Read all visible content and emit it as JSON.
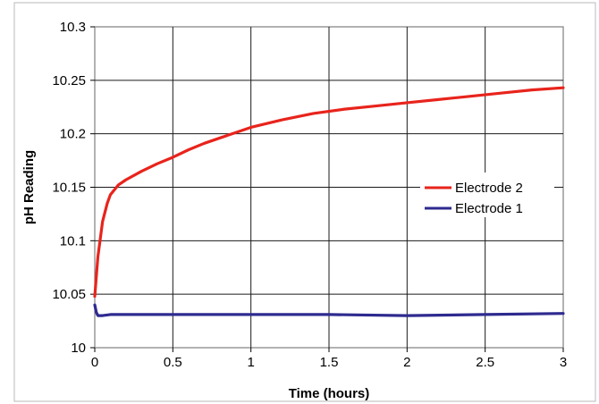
{
  "chart_data": {
    "type": "line",
    "title": "",
    "xlabel": "Time (hours)",
    "ylabel": "pH Reading",
    "xlim": [
      0,
      3
    ],
    "ylim": [
      10,
      10.3
    ],
    "x_ticks": [
      "0",
      "0.5",
      "1",
      "1.5",
      "2",
      "2.5",
      "3"
    ],
    "y_ticks": [
      "10",
      "10.05",
      "10.1",
      "10.15",
      "10.2",
      "10.25",
      "10.3"
    ],
    "grid": true,
    "legend_position": "right",
    "series": [
      {
        "name": "Electrode 2",
        "color": "#e8241c",
        "x": [
          0,
          0.02,
          0.05,
          0.08,
          0.1,
          0.15,
          0.2,
          0.3,
          0.4,
          0.5,
          0.6,
          0.7,
          0.8,
          0.9,
          1.0,
          1.2,
          1.4,
          1.6,
          1.8,
          2.0,
          2.2,
          2.4,
          2.6,
          2.8,
          3.0
        ],
        "y": [
          10.048,
          10.085,
          10.118,
          10.135,
          10.143,
          10.152,
          10.157,
          10.165,
          10.172,
          10.178,
          10.185,
          10.191,
          10.196,
          10.201,
          10.206,
          10.213,
          10.219,
          10.223,
          10.226,
          10.229,
          10.232,
          10.235,
          10.238,
          10.241,
          10.243
        ]
      },
      {
        "name": "Electrode 1",
        "color": "#2e2a8f",
        "x": [
          0,
          0.01,
          0.02,
          0.05,
          0.1,
          0.3,
          0.5,
          1.0,
          1.5,
          2.0,
          2.5,
          3.0
        ],
        "y": [
          10.04,
          10.033,
          10.03,
          10.03,
          10.031,
          10.031,
          10.031,
          10.031,
          10.031,
          10.03,
          10.031,
          10.032
        ]
      }
    ]
  }
}
